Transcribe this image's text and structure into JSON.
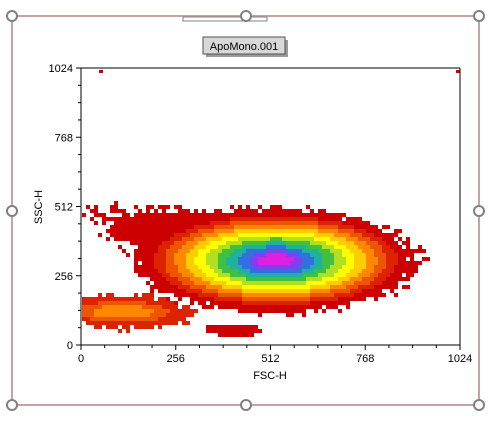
{
  "colors": {
    "selection_border": "#c8a2a2",
    "handle_stroke": "#808080",
    "handle_fill": "#ffffff",
    "title_box_fill": "#d8d8d8",
    "density_scale": [
      "#cc0000",
      "#dd2200",
      "#ee5500",
      "#ff8800",
      "#ffcc00",
      "#ffff00",
      "#b0e020",
      "#40c040",
      "#20b0a0",
      "#3070e0",
      "#8040f0",
      "#e020e0"
    ]
  },
  "chart_data": {
    "type": "heatmap",
    "title": "ApoMono.001",
    "xlabel": "FSC-H",
    "ylabel": "SSC-H",
    "xlim": [
      0,
      1024
    ],
    "ylim": [
      0,
      1024
    ],
    "x_ticks": [
      0,
      256,
      512,
      768,
      1024
    ],
    "y_ticks": [
      0,
      256,
      512,
      768,
      1024
    ],
    "x_tick_labels": [
      "0",
      "256",
      "512",
      "768",
      "1024"
    ],
    "y_tick_labels": [
      "0",
      "256",
      "512",
      "768",
      "1024"
    ],
    "grid": false,
    "legend": "none",
    "density_peak": {
      "x": 520,
      "y": 320
    }
  }
}
